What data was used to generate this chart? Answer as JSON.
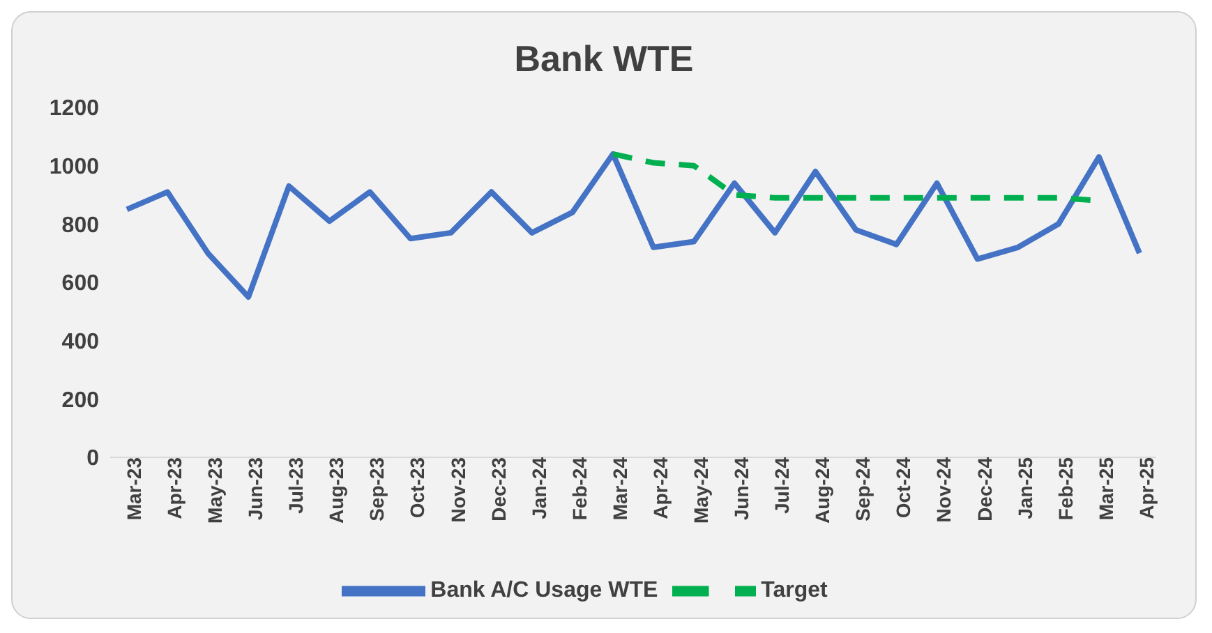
{
  "chart_data": {
    "type": "line",
    "title": "Bank WTE",
    "categories": [
      "Mar-23",
      "Apr-23",
      "May-23",
      "Jun-23",
      "Jul-23",
      "Aug-23",
      "Sep-23",
      "Oct-23",
      "Nov-23",
      "Dec-23",
      "Jan-24",
      "Feb-24",
      "Mar-24",
      "Apr-24",
      "May-24",
      "Jun-24",
      "Jul-24",
      "Aug-24",
      "Sep-24",
      "Oct-24",
      "Nov-24",
      "Dec-24",
      "Jan-25",
      "Feb-25",
      "Mar-25",
      "Apr-25"
    ],
    "series": [
      {
        "name": "Bank A/C Usage WTE",
        "color": "#4472c4",
        "line_style": "solid",
        "values": [
          850,
          910,
          700,
          550,
          930,
          810,
          910,
          750,
          770,
          910,
          770,
          840,
          1040,
          720,
          740,
          940,
          770,
          980,
          780,
          730,
          940,
          680,
          720,
          800,
          1030,
          700
        ]
      },
      {
        "name": "Target",
        "color": "#00b050",
        "line_style": "dashed",
        "values": [
          null,
          null,
          null,
          null,
          null,
          null,
          null,
          null,
          null,
          null,
          null,
          null,
          1040,
          1010,
          1000,
          900,
          890,
          890,
          890,
          890,
          890,
          890,
          890,
          890,
          880,
          null
        ]
      }
    ],
    "ylim": [
      0,
      1200
    ],
    "yticks": [
      0,
      200,
      400,
      600,
      800,
      1000,
      1200
    ],
    "grid": false,
    "legend": "bottom",
    "marker": "none"
  }
}
